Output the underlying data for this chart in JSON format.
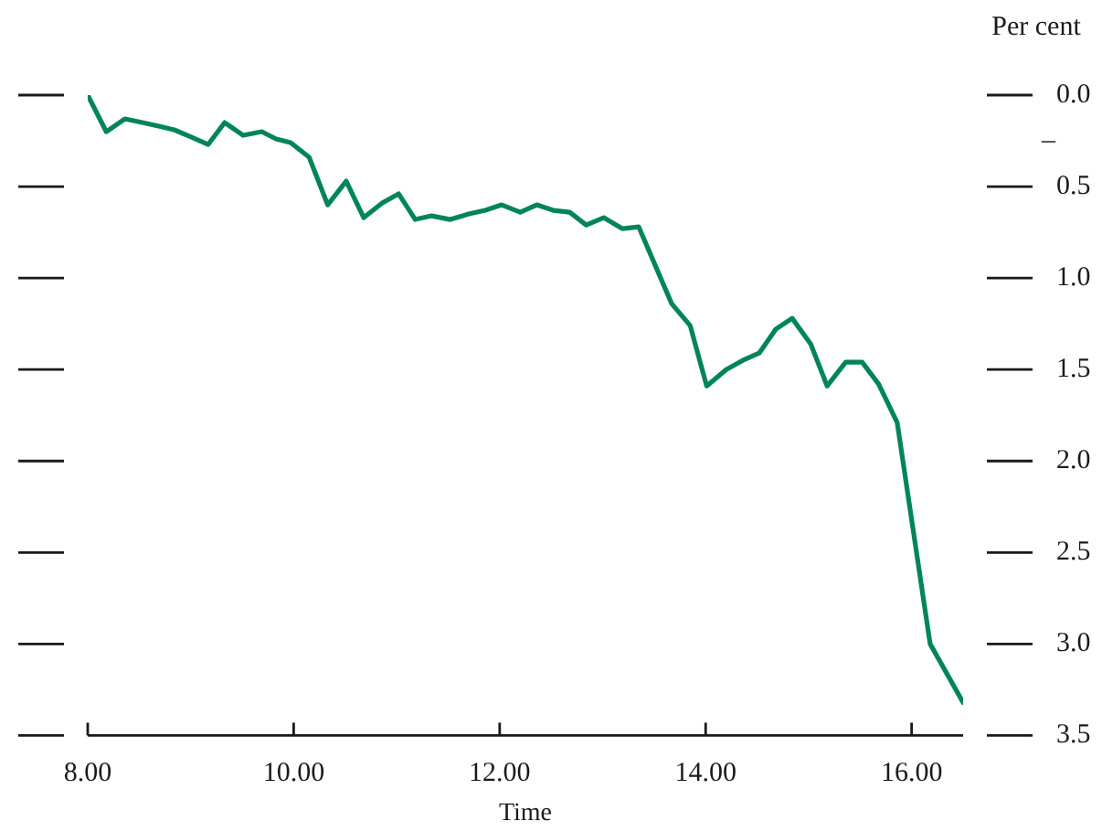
{
  "chart_data": {
    "type": "line",
    "xlabel": "Time",
    "ylabel": "Per cent",
    "annotations": [
      "–"
    ],
    "xlim": [
      8,
      16.5
    ],
    "xticks": [
      {
        "value": 8,
        "label": "8.00"
      },
      {
        "value": 10,
        "label": "10.00"
      },
      {
        "value": 12,
        "label": "12.00"
      },
      {
        "value": 14,
        "label": "14.00"
      },
      {
        "value": 16,
        "label": "16.00"
      }
    ],
    "ylim": [
      -3.5,
      0
    ],
    "yticks": [
      {
        "value": 0,
        "label": "0.0"
      },
      {
        "value": -0.5,
        "label": "0.5"
      },
      {
        "value": -1,
        "label": "1.0"
      },
      {
        "value": -1.5,
        "label": "1.5"
      },
      {
        "value": -2,
        "label": "2.0"
      },
      {
        "value": -2.5,
        "label": "2.5"
      },
      {
        "value": -3,
        "label": "3.0"
      },
      {
        "value": -3.5,
        "label": "3.5"
      }
    ],
    "marker": "none",
    "line_style": "solid",
    "series": [
      {
        "color": "#00855a",
        "x": [
          8.0,
          8.18,
          8.36,
          8.53,
          8.69,
          8.84,
          9.01,
          9.17,
          9.33,
          9.51,
          9.69,
          9.83,
          9.97,
          10.15,
          10.33,
          10.51,
          10.68,
          10.86,
          11.02,
          11.18,
          11.34,
          11.52,
          11.7,
          11.86,
          12.02,
          12.2,
          12.36,
          12.52,
          12.68,
          12.84,
          13.01,
          13.19,
          13.35,
          13.67,
          13.85,
          14.01,
          14.2,
          14.36,
          14.52,
          14.68,
          14.84,
          15.02,
          15.18,
          15.36,
          15.52,
          15.68,
          15.86,
          16.18,
          16.5
        ],
        "values": [
          0.0,
          -0.2,
          -0.13,
          -0.15,
          -0.17,
          -0.19,
          -0.23,
          -0.27,
          -0.15,
          -0.22,
          -0.2,
          -0.24,
          -0.26,
          -0.34,
          -0.6,
          -0.47,
          -0.67,
          -0.59,
          -0.54,
          -0.68,
          -0.66,
          -0.68,
          -0.65,
          -0.63,
          -0.6,
          -0.64,
          -0.6,
          -0.63,
          -0.64,
          -0.71,
          -0.67,
          -0.73,
          -0.72,
          -1.14,
          -1.26,
          -1.59,
          -1.5,
          -1.45,
          -1.41,
          -1.28,
          -1.22,
          -1.36,
          -1.59,
          -1.46,
          -1.46,
          -1.58,
          -1.79,
          -3.0,
          -3.32
        ]
      }
    ]
  }
}
